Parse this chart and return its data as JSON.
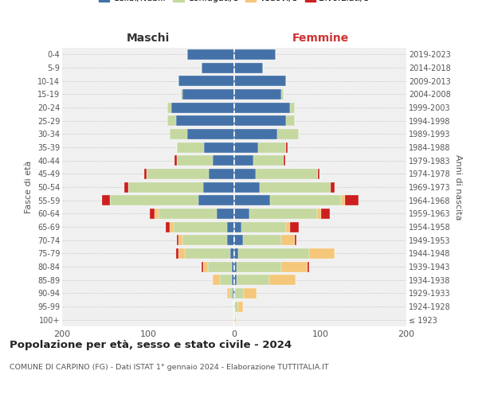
{
  "age_groups": [
    "100+",
    "95-99",
    "90-94",
    "85-89",
    "80-84",
    "75-79",
    "70-74",
    "65-69",
    "60-64",
    "55-59",
    "50-54",
    "45-49",
    "40-44",
    "35-39",
    "30-34",
    "25-29",
    "20-24",
    "15-19",
    "10-14",
    "5-9",
    "0-4"
  ],
  "birth_years": [
    "≤ 1923",
    "1924-1928",
    "1929-1933",
    "1934-1938",
    "1939-1943",
    "1944-1948",
    "1949-1953",
    "1954-1958",
    "1959-1963",
    "1964-1968",
    "1969-1973",
    "1974-1978",
    "1979-1983",
    "1984-1988",
    "1989-1993",
    "1994-1998",
    "1999-2003",
    "2004-2008",
    "2009-2013",
    "2014-2018",
    "2019-2023"
  ],
  "colors": {
    "celibi": "#4472a8",
    "coniugati": "#c5d8a0",
    "vedovi": "#f5c77a",
    "divorziati": "#cc2020"
  },
  "m_cel": [
    0,
    0,
    2,
    3,
    3,
    5,
    8,
    8,
    20,
    42,
    36,
    30,
    25,
    35,
    55,
    68,
    73,
    60,
    65,
    38,
    55
  ],
  "m_con": [
    0,
    0,
    4,
    14,
    28,
    52,
    52,
    62,
    68,
    102,
    87,
    72,
    42,
    32,
    20,
    10,
    5,
    2,
    0,
    0,
    0
  ],
  "m_ved": [
    0,
    0,
    2,
    8,
    5,
    8,
    5,
    5,
    5,
    0,
    0,
    0,
    0,
    0,
    0,
    0,
    0,
    0,
    0,
    0,
    0
  ],
  "m_div": [
    0,
    0,
    0,
    0,
    2,
    3,
    2,
    5,
    5,
    10,
    5,
    3,
    2,
    0,
    0,
    0,
    0,
    0,
    0,
    0,
    0
  ],
  "f_nub": [
    0,
    0,
    1,
    3,
    3,
    5,
    10,
    8,
    18,
    42,
    30,
    25,
    22,
    28,
    50,
    60,
    65,
    55,
    60,
    33,
    48
  ],
  "f_con": [
    0,
    5,
    10,
    38,
    52,
    82,
    45,
    52,
    78,
    82,
    82,
    72,
    35,
    32,
    25,
    10,
    5,
    2,
    0,
    0,
    0
  ],
  "f_ved": [
    2,
    5,
    15,
    30,
    30,
    30,
    15,
    5,
    5,
    5,
    0,
    0,
    0,
    0,
    0,
    0,
    0,
    0,
    0,
    0,
    0
  ],
  "f_div": [
    0,
    0,
    0,
    0,
    2,
    0,
    2,
    10,
    10,
    15,
    5,
    2,
    2,
    2,
    0,
    0,
    0,
    0,
    0,
    0,
    0
  ],
  "xlim": 200,
  "title": "Popolazione per età, sesso e stato civile - 2024",
  "subtitle": "COMUNE DI CARPINO (FG) - Dati ISTAT 1° gennaio 2024 - Elaborazione TUTTITALIA.IT",
  "ylabel_left": "Fasce di età",
  "ylabel_right": "Anni di nascita",
  "xlabel_left": "Maschi",
  "xlabel_right": "Femmine",
  "background_color": "#ffffff",
  "grid_color": "#cccccc",
  "bg_axes": "#f0f0f0"
}
